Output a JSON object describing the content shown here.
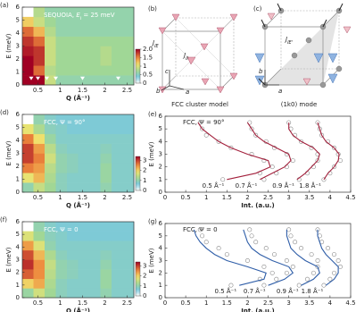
{
  "chart_data": [
    {
      "type": "heatmap",
      "panel": "(a)",
      "title": {
        "prefix": "SEQUOIA, ",
        "var": "E",
        "sub": "i",
        "suffix": " = 25 meV"
      },
      "xlabel": "Q (Å⁻¹)",
      "ylabel": "E (meV)",
      "xlim": [
        0.15,
        2.65
      ],
      "ylim": [
        0,
        6
      ],
      "xticks": [
        0.5,
        1,
        1.5,
        2,
        2.5
      ],
      "yticks": [
        0,
        1,
        2,
        3,
        4,
        5,
        6
      ],
      "xbins": [
        0.15,
        0.4,
        0.65,
        0.9,
        1.15,
        1.4,
        1.65,
        1.9,
        2.15,
        2.4,
        2.65
      ],
      "ybins": [
        0,
        0.75,
        1.5,
        2.25,
        3,
        3.75,
        4.5,
        5.25,
        6
      ],
      "z": [
        [
          2.0,
          2.0,
          0.9,
          0.6,
          0.6,
          0.6,
          0.6,
          0.6,
          0.6,
          0.6
        ],
        [
          2.0,
          1.6,
          0.8,
          0.7,
          0.7,
          0.7,
          0.7,
          0.7,
          0.7,
          0.7
        ],
        [
          2.0,
          1.8,
          0.9,
          0.7,
          0.7,
          0.7,
          0.7,
          0.8,
          0.7,
          0.7
        ],
        [
          1.9,
          1.8,
          0.9,
          0.7,
          0.7,
          0.7,
          0.7,
          0.8,
          0.7,
          0.7
        ],
        [
          1.8,
          1.6,
          0.9,
          0.7,
          0.7,
          0.7,
          0.7,
          0.7,
          0.7,
          0.7
        ],
        [
          1.6,
          1.3,
          0.8,
          0.6,
          0.6,
          0.6,
          0.6,
          0.6,
          0.6,
          0.6
        ],
        [
          1.2,
          0.9,
          0.7,
          0.6,
          0.6,
          0.6,
          0.6,
          0.6,
          0.6,
          0.6
        ],
        [
          null,
          0.8,
          0.6,
          0.6,
          0.6,
          0.6,
          0.6,
          0.6,
          0.6,
          0.6
        ]
      ],
      "clim": [
        0,
        2.0
      ],
      "cticks": [
        0,
        0.5,
        1,
        1.5,
        {
          "value": 2,
          "label": "2.0"
        }
      ],
      "markers_x": [
        0.35,
        0.5,
        0.7,
        0.9,
        1.5,
        2.3
      ],
      "marker_y": 0.5
    },
    {
      "type": "heatmap",
      "panel": "(d)",
      "title": {
        "text": "FCC, Ψ = 90°"
      },
      "xlabel": "Q (Å⁻¹)",
      "ylabel": "E (meV)",
      "xlim": [
        0.15,
        2.65
      ],
      "ylim": [
        0,
        6
      ],
      "xticks": [
        0.5,
        1,
        1.5,
        2,
        2.5
      ],
      "yticks": [
        0,
        1,
        2,
        3,
        4,
        5,
        6
      ],
      "xbins": [
        0.15,
        0.4,
        0.65,
        0.9,
        1.15,
        1.4,
        1.65,
        1.9,
        2.15,
        2.4,
        2.65
      ],
      "ybins": [
        0,
        0.75,
        1.5,
        2.25,
        3,
        3.75,
        4.5,
        5.25,
        6
      ],
      "z": [
        [
          1.0,
          1.5,
          1.2,
          0.9,
          0.8,
          0.8,
          0.8,
          1.0,
          0.8,
          0.8
        ],
        [
          1.8,
          2.2,
          1.3,
          0.9,
          0.8,
          0.8,
          0.8,
          1.1,
          0.8,
          0.8
        ],
        [
          2.6,
          2.4,
          1.4,
          1.0,
          0.9,
          0.8,
          0.8,
          1.1,
          0.8,
          0.8
        ],
        [
          3.0,
          2.6,
          1.6,
          1.0,
          0.9,
          0.8,
          0.8,
          1.0,
          0.8,
          0.8
        ],
        [
          3.0,
          2.4,
          1.4,
          0.9,
          0.8,
          0.8,
          0.8,
          0.9,
          0.8,
          0.8
        ],
        [
          2.6,
          1.9,
          1.1,
          0.8,
          0.8,
          0.8,
          0.8,
          0.8,
          0.8,
          0.8
        ],
        [
          1.8,
          1.3,
          0.9,
          0.8,
          0.7,
          0.7,
          0.7,
          0.7,
          0.7,
          0.7
        ],
        [
          null,
          1.0,
          0.8,
          0.7,
          0.7,
          0.7,
          0.7,
          0.7,
          0.7,
          0.7
        ]
      ],
      "clim": [
        0,
        3.4
      ],
      "cticks": [
        0,
        1,
        2,
        3
      ]
    },
    {
      "type": "heatmap",
      "panel": "(f)",
      "title": {
        "text": "FCC, Ψ = 0"
      },
      "xlabel": "Q (Å⁻¹)",
      "ylabel": "E (meV)",
      "xlim": [
        0.15,
        2.65
      ],
      "ylim": [
        0,
        6
      ],
      "xticks": [
        0.5,
        1,
        1.5,
        2,
        2.5
      ],
      "yticks": [
        0,
        1,
        2,
        3,
        4,
        5,
        6
      ],
      "xbins": [
        0.15,
        0.4,
        0.65,
        0.9,
        1.15,
        1.4,
        1.65,
        1.9,
        2.15,
        2.4,
        2.65
      ],
      "ybins": [
        0,
        0.75,
        1.5,
        2.25,
        3,
        3.75,
        4.5,
        5.25,
        6
      ],
      "z": [
        [
          1.1,
          1.6,
          1.2,
          0.9,
          0.8,
          0.8,
          0.8,
          1.0,
          0.8,
          0.8
        ],
        [
          2.0,
          2.3,
          1.3,
          0.9,
          0.8,
          0.8,
          0.8,
          1.1,
          0.8,
          0.8
        ],
        [
          2.8,
          2.5,
          1.4,
          1.0,
          0.9,
          0.8,
          0.8,
          1.1,
          0.8,
          0.8
        ],
        [
          3.1,
          2.5,
          1.5,
          1.0,
          0.9,
          0.8,
          0.8,
          1.0,
          0.8,
          0.8
        ],
        [
          2.9,
          2.2,
          1.3,
          0.9,
          0.8,
          0.8,
          0.8,
          0.9,
          0.8,
          0.8
        ],
        [
          2.4,
          1.7,
          1.0,
          0.8,
          0.8,
          0.8,
          0.8,
          0.8,
          0.8,
          0.8
        ],
        [
          1.7,
          1.2,
          0.9,
          0.8,
          0.7,
          0.7,
          0.7,
          0.7,
          0.7,
          0.7
        ],
        [
          null,
          1.0,
          0.8,
          0.7,
          0.7,
          0.7,
          0.7,
          0.7,
          0.7,
          0.7
        ]
      ],
      "clim": [
        0,
        3.4
      ],
      "cticks": [
        0,
        1,
        2,
        3
      ]
    },
    {
      "type": "line",
      "panel": "(e)",
      "title": {
        "text": "FCC, Ψ = 90°"
      },
      "xlabel": "Int. (a.u.)",
      "ylabel": "E (meV)",
      "xlim": [
        0,
        4.5
      ],
      "ylim": [
        0,
        6
      ],
      "xticks": [
        0,
        0.5,
        1,
        1.5,
        2,
        2.5,
        3,
        3.5,
        4,
        4.5
      ],
      "yticks": [
        0,
        1,
        2,
        3,
        4,
        5,
        6
      ],
      "y": [
        1,
        1.5,
        2,
        2.5,
        3,
        3.5,
        4,
        4.5,
        5,
        5.5
      ],
      "color": "#a3203c",
      "series": [
        {
          "name": "0.5 Å⁻¹",
          "values": [
            1.5,
            2.2,
            2.55,
            2.5,
            2.0,
            1.6,
            1.3,
            1.1,
            0.9,
            0.8
          ],
          "points": [
            1.4,
            2.3,
            2.6,
            2.4,
            2.1,
            1.6,
            1.3,
            1.0,
            0.9,
            0.85
          ]
        },
        {
          "name": "0.7 Å⁻¹",
          "values": [
            2.3,
            2.6,
            2.9,
            3.05,
            3.0,
            2.7,
            2.4,
            2.2,
            2.1,
            2.0
          ],
          "points": [
            2.4,
            2.7,
            2.95,
            3.1,
            2.95,
            2.65,
            2.45,
            2.2,
            2.1,
            2.05
          ]
        },
        {
          "name": "0.9 Å⁻¹",
          "values": [
            3.2,
            3.4,
            3.55,
            3.7,
            3.75,
            3.6,
            3.3,
            3.1,
            3.0,
            3.0
          ],
          "points": [
            3.25,
            3.45,
            3.6,
            3.7,
            3.7,
            3.55,
            3.3,
            3.15,
            3.05,
            3.0
          ]
        },
        {
          "name": "1.8 Å⁻¹",
          "values": [
            3.85,
            3.95,
            4.1,
            4.2,
            4.22,
            4.1,
            3.9,
            3.8,
            3.75,
            3.7
          ],
          "points": [
            3.85,
            4.0,
            4.1,
            4.25,
            4.2,
            4.1,
            3.95,
            3.8,
            3.75,
            3.7
          ]
        }
      ]
    },
    {
      "type": "line",
      "panel": "(g)",
      "title": {
        "text": "FCC, Ψ = 0"
      },
      "xlabel": "Int. (a.u.)",
      "ylabel": "E (meV)",
      "xlim": [
        0,
        4.5
      ],
      "ylim": [
        0,
        6
      ],
      "xticks": [
        0,
        0.5,
        1,
        1.5,
        2,
        2.5,
        3,
        3.5,
        4,
        4.5
      ],
      "yticks": [
        0,
        1,
        2,
        3,
        4,
        5,
        6
      ],
      "y": [
        1,
        1.5,
        2,
        2.5,
        3,
        3.5,
        4,
        4.5,
        5,
        5.5
      ],
      "color": "#2f5ea8",
      "series": [
        {
          "name": "0.5 Å⁻¹",
          "values": [
            1.8,
            2.4,
            2.45,
            2.0,
            1.5,
            1.2,
            1.0,
            0.85,
            0.75,
            0.7
          ],
          "points": [
            1.6,
            2.3,
            2.6,
            2.4,
            2.0,
            1.5,
            1.3,
            1.0,
            0.9,
            0.85
          ]
        },
        {
          "name": "0.7 Å⁻¹",
          "values": [
            2.5,
            2.9,
            3.1,
            3.0,
            2.6,
            2.3,
            2.1,
            2.0,
            1.95,
            1.9
          ],
          "points": [
            2.4,
            2.7,
            2.95,
            3.1,
            2.95,
            2.65,
            2.45,
            2.2,
            2.1,
            2.05
          ]
        },
        {
          "name": "0.9 Å⁻¹",
          "values": [
            3.3,
            3.6,
            3.75,
            3.7,
            3.4,
            3.2,
            3.05,
            3.0,
            2.95,
            2.95
          ],
          "points": [
            3.25,
            3.45,
            3.6,
            3.7,
            3.7,
            3.55,
            3.3,
            3.15,
            3.05,
            3.0
          ]
        },
        {
          "name": "1.8 Å⁻¹",
          "values": [
            3.9,
            4.1,
            4.2,
            4.2,
            4.05,
            3.9,
            3.8,
            3.75,
            3.7,
            3.7
          ],
          "points": [
            3.85,
            4.0,
            4.1,
            4.25,
            4.2,
            4.1,
            3.95,
            3.8,
            3.75,
            3.7
          ]
        }
      ]
    }
  ],
  "diagrams": {
    "b": {
      "panel": "(b)",
      "j1": {
        "symbol": "J",
        "sub": "IE"
      },
      "j2": {
        "symbol": "J",
        "sub": "II"
      },
      "c": "c",
      "b": "b",
      "a": "a",
      "caption": "FCC cluster model"
    },
    "c": {
      "panel": "(c)",
      "j1": {
        "symbol": "J",
        "sub": "IE'"
      },
      "b": "b",
      "a": "a",
      "caption": "(1k0) mode"
    }
  }
}
